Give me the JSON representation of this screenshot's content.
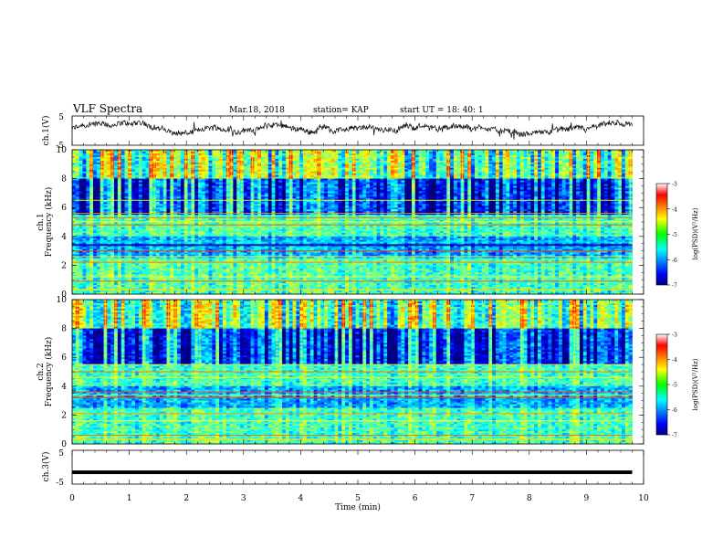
{
  "header": {
    "title": "VLF Spectra",
    "date": "Mar.18, 2018",
    "station": "station= KAP",
    "start": "start  UT =   18: 40: 1"
  },
  "chart_data": [
    {
      "type": "line",
      "id": "ch1-waveform",
      "ylabel": "ch.1(V)",
      "ylim": [
        -5,
        5
      ],
      "ytick_labels": [
        "5",
        "-5"
      ],
      "x_range_min": [
        0,
        9.8
      ],
      "description_series": "noisy voltage waveform, amplitude about -3 to 3 V"
    },
    {
      "type": "heatmap",
      "id": "ch1-spectrogram",
      "ylabel": "ch.1\nFrequency (kHz)",
      "ylabel_lines": [
        "ch.1",
        "Frequency  (kHz)"
      ],
      "ylim": [
        0,
        10
      ],
      "ytick_labels": [
        "0",
        "2",
        "4",
        "6",
        "8",
        "10"
      ],
      "x_range_min": [
        0,
        9.8
      ],
      "colorbar": {
        "label": "log(PSD)(V²/Hz)",
        "range": [
          -7,
          -3
        ],
        "tick_labels": [
          "-3",
          "-4",
          "-5",
          "-6",
          "-7"
        ],
        "colormap": "jet"
      }
    },
    {
      "type": "heatmap",
      "id": "ch2-spectrogram",
      "ylabel_lines": [
        "ch.2",
        "Frequency  (kHz)"
      ],
      "ylim": [
        0,
        10
      ],
      "ytick_labels": [
        "0",
        "2",
        "4",
        "6",
        "8",
        "10"
      ],
      "x_range_min": [
        0,
        9.8
      ],
      "colorbar": {
        "label": "log(PSD)(V²/Hz)",
        "range": [
          -7,
          -3
        ],
        "tick_labels": [
          "-3",
          "-4",
          "-5",
          "-6",
          "-7"
        ],
        "colormap": "jet"
      }
    },
    {
      "type": "line",
      "id": "ch3-waveform",
      "ylabel": "ch.3(V)",
      "ylim": [
        -5,
        5
      ],
      "ytick_labels": [
        "5",
        "-5"
      ],
      "series": [
        {
          "value": -1.5
        }
      ],
      "x_range_min": [
        0,
        9.8
      ]
    }
  ],
  "xaxis": {
    "label": "Time  (min)",
    "xlim": [
      0,
      10
    ],
    "tick_labels": [
      "0",
      "1",
      "2",
      "3",
      "4",
      "5",
      "6",
      "7",
      "8",
      "9",
      "10"
    ]
  }
}
